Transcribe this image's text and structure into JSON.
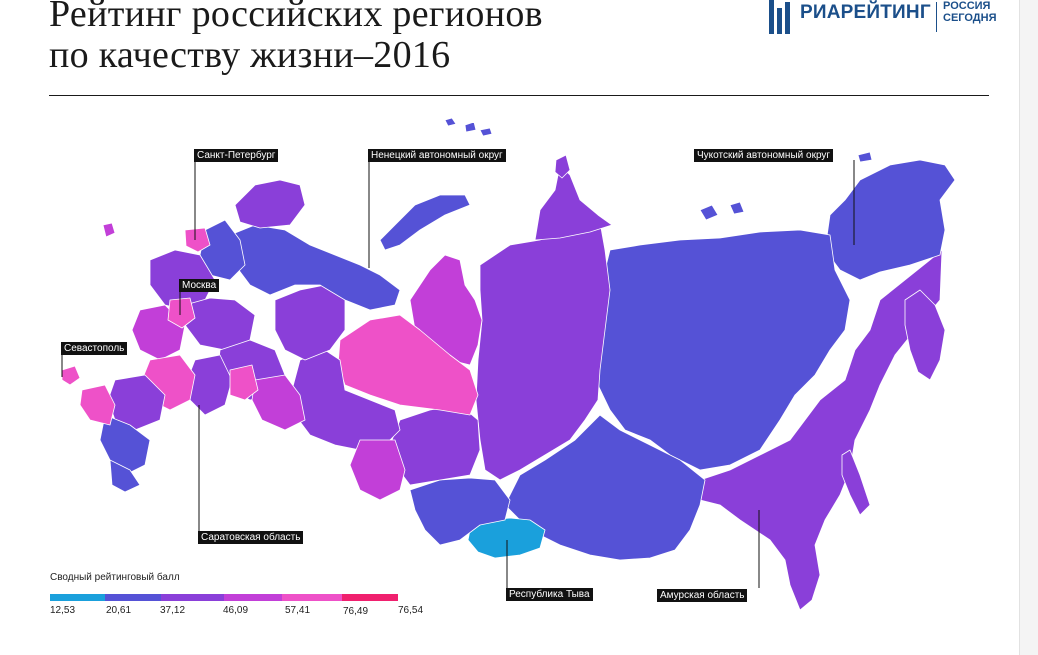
{
  "title": {
    "line1": "Рейтинг российских регионов",
    "line2": "по качеству жизни–2016"
  },
  "logo": {
    "main": "РИАРЕЙТИНГ",
    "sub_line1": "РОССИЯ",
    "sub_line2": "СЕГОДНЯ",
    "icon": "ria-rating-logo-icon"
  },
  "callouts": {
    "spb": "Санкт-Петербург",
    "nenets": "Ненецкий автономный округ",
    "chukotka": "Чукотский автономный округ",
    "moscow": "Москва",
    "sevastopol": "Севастополь",
    "saratov": "Саратовская область",
    "tyva": "Республика Тыва",
    "amur": "Амурская область"
  },
  "legend": {
    "title": "Сводный рейтинговый балл",
    "ticks": [
      "12,53",
      "20,61",
      "37,12",
      "46,09",
      "57,41",
      "76,49",
      "76,54"
    ],
    "colors": [
      "#1aa0dc",
      "#5552d6",
      "#8a3fd9",
      "#c23fd8",
      "#ee51c8",
      "#f0206e"
    ]
  },
  "colors": {
    "blue_dark": "#5552d6",
    "violet": "#8a3fd9",
    "purple": "#c23fd8",
    "pink": "#ee51c8",
    "cyan": "#1aa0dc",
    "rose": "#f0206e"
  }
}
